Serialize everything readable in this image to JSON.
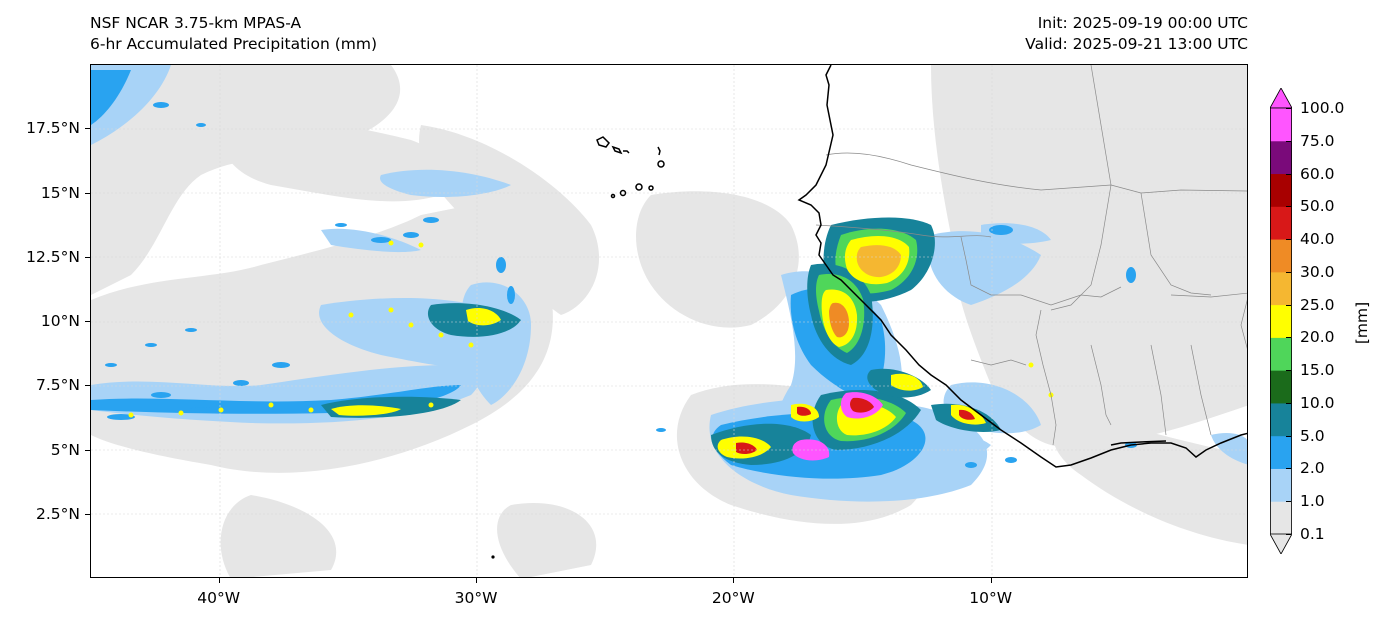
{
  "title": {
    "model": "NSF NCAR 3.75-km MPAS-A",
    "field": "6-hr Accumulated Precipitation (mm)",
    "init": "Init: 2025-09-19 00:00 UTC",
    "valid": "Valid: 2025-09-21 13:00 UTC"
  },
  "map": {
    "lon_range": [
      -45,
      0
    ],
    "lat_range": [
      0,
      20
    ],
    "lon_ticks": [
      {
        "value": -40,
        "label": "40°W"
      },
      {
        "value": -30,
        "label": "30°W"
      },
      {
        "value": -20,
        "label": "20°W"
      },
      {
        "value": -10,
        "label": "10°W"
      }
    ],
    "lat_ticks": [
      {
        "value": 2.5,
        "label": "2.5°N"
      },
      {
        "value": 5,
        "label": "5°N"
      },
      {
        "value": 7.5,
        "label": "7.5°N"
      },
      {
        "value": 10,
        "label": "10°N"
      },
      {
        "value": 12.5,
        "label": "12.5°N"
      },
      {
        "value": 15,
        "label": "15°N"
      },
      {
        "value": 17.5,
        "label": "17.5°N"
      }
    ],
    "gridlines": true
  },
  "colorbar": {
    "units": "[mm]",
    "levels": [
      "0.1",
      "1.0",
      "2.0",
      "5.0",
      "10.0",
      "15.0",
      "20.0",
      "25.0",
      "30.0",
      "40.0",
      "50.0",
      "60.0",
      "75.0",
      "100.0"
    ],
    "colors": [
      "#e6e6e6",
      "#a8d3f7",
      "#29a3f0",
      "#17839a",
      "#1b6b1b",
      "#4fd65a",
      "#ffff00",
      "#f5b731",
      "#ef8b25",
      "#d81818",
      "#a80000",
      "#7a0a7a",
      "#ff55ff"
    ]
  }
}
